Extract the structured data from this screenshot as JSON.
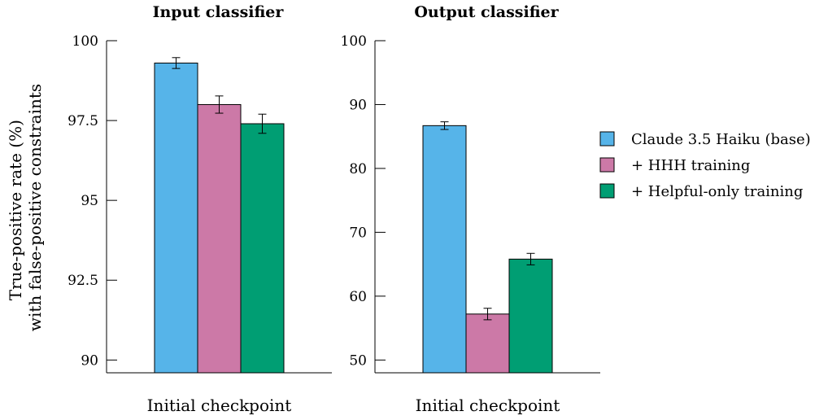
{
  "y_axis_label": [
    "True-positive rate (%)",
    "with false-positive constraints"
  ],
  "legend": [
    {
      "label": "Claude 3.5 Haiku (base)",
      "color": "#56b4e9"
    },
    {
      "label": "+ HHH training",
      "color": "#cc79a7"
    },
    {
      "label": "+ Helpful-only training",
      "color": "#009e73"
    }
  ],
  "chart_data": [
    {
      "type": "bar",
      "title": "Input classifier",
      "categories": [
        "Initial checkpoint"
      ],
      "ylim": [
        89.6,
        100
      ],
      "yticks": [
        90,
        92.5,
        95,
        97.5,
        100
      ],
      "ytick_labels": [
        "90",
        "92.5",
        "95",
        "97.5",
        "100"
      ],
      "series": [
        {
          "name": "Claude 3.5 Haiku (base)",
          "values": [
            99.3
          ],
          "error": [
            0.17
          ]
        },
        {
          "name": "+ HHH training",
          "values": [
            98.0
          ],
          "error": [
            0.27
          ]
        },
        {
          "name": "+ Helpful-only training",
          "values": [
            97.4
          ],
          "error": [
            0.3
          ]
        }
      ],
      "grid": false
    },
    {
      "type": "bar",
      "title": "Output classifier",
      "categories": [
        "Initial checkpoint"
      ],
      "ylim": [
        48,
        100
      ],
      "yticks": [
        50,
        60,
        70,
        80,
        90,
        100
      ],
      "ytick_labels": [
        "50",
        "60",
        "70",
        "80",
        "90",
        "100"
      ],
      "series": [
        {
          "name": "Claude 3.5 Haiku (base)",
          "values": [
            86.7
          ],
          "error": [
            0.6
          ]
        },
        {
          "name": "+ HHH training",
          "values": [
            57.2
          ],
          "error": [
            0.9
          ]
        },
        {
          "name": "+ Helpful-only training",
          "values": [
            65.8
          ],
          "error": [
            0.9
          ]
        }
      ],
      "grid": false
    }
  ]
}
